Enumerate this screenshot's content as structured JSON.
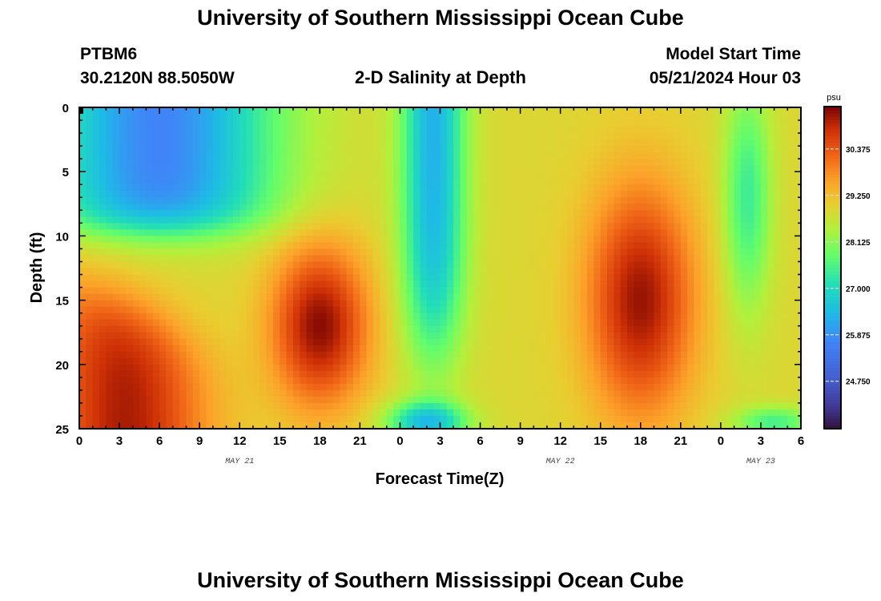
{
  "header": {
    "title": "University of Southern Mississippi Ocean Cube",
    "station_id": "PTBM6",
    "station_coords": "30.2120N  88.5050W",
    "plot_title": "2-D Salinity at Depth",
    "model_start_label": "Model Start Time",
    "model_start_value": "05/21/2024 Hour 03"
  },
  "footer": {
    "title": "University of Southern Mississippi Ocean Cube"
  },
  "chart_data": {
    "type": "heatmap",
    "title": "2-D Salinity at Depth",
    "xlabel": "Forecast Time(Z)",
    "ylabel": "Depth (ft)",
    "x_ticks": [
      "0",
      "3",
      "6",
      "9",
      "12",
      "15",
      "18",
      "21",
      "0",
      "3",
      "6",
      "9",
      "12",
      "15",
      "18",
      "21",
      "0",
      "3",
      "6"
    ],
    "x_tick_hours": [
      0,
      3,
      6,
      9,
      12,
      15,
      18,
      21,
      24,
      27,
      30,
      33,
      36,
      39,
      42,
      45,
      48,
      51,
      54
    ],
    "date_labels": [
      {
        "text": "MAY 21",
        "hour": 12
      },
      {
        "text": "MAY 22",
        "hour": 36
      },
      {
        "text": "MAY 23",
        "hour": 51
      }
    ],
    "x_range_hours": [
      0,
      54
    ],
    "y_ticks": [
      "0",
      "5",
      "10",
      "15",
      "20",
      "25"
    ],
    "y_tick_values": [
      0,
      5,
      10,
      15,
      20,
      25
    ],
    "y_range_ft": [
      0,
      25
    ],
    "colorbar": {
      "unit": "psu",
      "min": 23.6,
      "max": 31.4,
      "tick_labels": [
        "30.375",
        "29.250",
        "28.125",
        "27.000",
        "25.875",
        "24.750"
      ],
      "tick_values": [
        30.375,
        29.25,
        28.125,
        27.0,
        25.875,
        24.75
      ]
    },
    "features": [
      {
        "desc": "high-salinity core",
        "hour_center": 18,
        "depth_center_ft": 17,
        "salinity": 31.3
      },
      {
        "desc": "high-salinity core",
        "hour_center": 42,
        "depth_center_ft": 15,
        "salinity": 31.3
      },
      {
        "desc": "high-salinity bottom layer",
        "hour_center": 4,
        "depth_center_ft": 22,
        "salinity": 30.9
      },
      {
        "desc": "low-salinity surface layer",
        "hour_center": 8,
        "depth_center_ft": 4,
        "salinity": 25.6
      },
      {
        "desc": "low-salinity column",
        "hour_center": 26,
        "depth_center_ft": 8,
        "salinity": 26.0
      }
    ]
  }
}
